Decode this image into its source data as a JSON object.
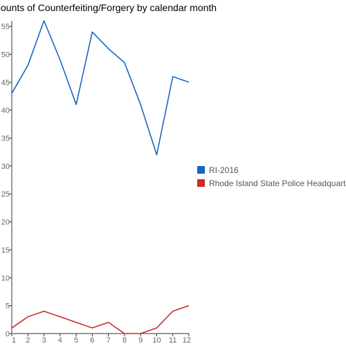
{
  "chart_data": {
    "type": "line",
    "title": "Amounts of Counterfeiting/Forgery by calendar month",
    "xlabel": "",
    "ylabel": "",
    "x": [
      1,
      2,
      3,
      4,
      5,
      6,
      7,
      8,
      9,
      10,
      11,
      12
    ],
    "xlim": [
      1,
      12
    ],
    "ylim": [
      0,
      56
    ],
    "yticks": [
      0,
      5,
      10,
      15,
      20,
      25,
      30,
      35,
      40,
      45,
      50,
      55
    ],
    "grid": false,
    "legend_position": "right",
    "series": [
      {
        "name": "RI-2016",
        "color": "#1a66bf",
        "values": [
          43,
          48,
          56,
          49,
          41,
          54,
          51,
          48.5,
          41,
          32,
          46,
          45
        ]
      },
      {
        "name": "Rhode Island State Police Headquarters",
        "color": "#cc2a2a",
        "values": [
          1,
          3,
          4,
          3,
          2,
          1,
          2,
          0,
          0,
          1,
          4,
          5
        ]
      }
    ]
  }
}
